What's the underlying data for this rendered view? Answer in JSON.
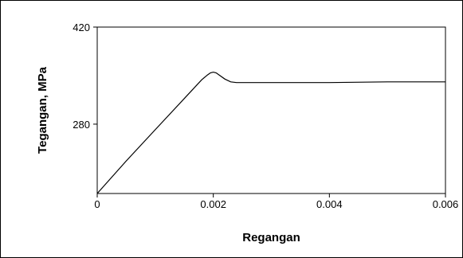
{
  "chart_data": {
    "type": "line",
    "title": "",
    "xlabel": "Regangan",
    "ylabel": "Tegangan, MPa",
    "xlim": [
      0,
      0.006
    ],
    "ylim": [
      180,
      420
    ],
    "x_ticks": [
      {
        "value": 0,
        "label": "0"
      },
      {
        "value": 0.002,
        "label": "0.002"
      },
      {
        "value": 0.004,
        "label": "0.004"
      },
      {
        "value": 0.006,
        "label": "0.006"
      }
    ],
    "y_ticks": [
      {
        "value": 280,
        "label": "280"
      },
      {
        "value": 420,
        "label": "420"
      }
    ],
    "grid": false,
    "legend": null,
    "line_color": "#000000",
    "series": [
      {
        "x": [
          0,
          0.0005,
          0.001,
          0.0015,
          0.0018,
          0.0019,
          0.00195,
          0.002,
          0.00205,
          0.0021,
          0.0022,
          0.0023,
          0.0024,
          0.003,
          0.004,
          0.005,
          0.006
        ],
        "y": [
          180,
          227,
          272,
          317,
          344,
          351,
          354,
          355,
          354,
          351,
          345,
          341,
          340,
          340,
          340,
          341,
          341
        ]
      }
    ]
  }
}
